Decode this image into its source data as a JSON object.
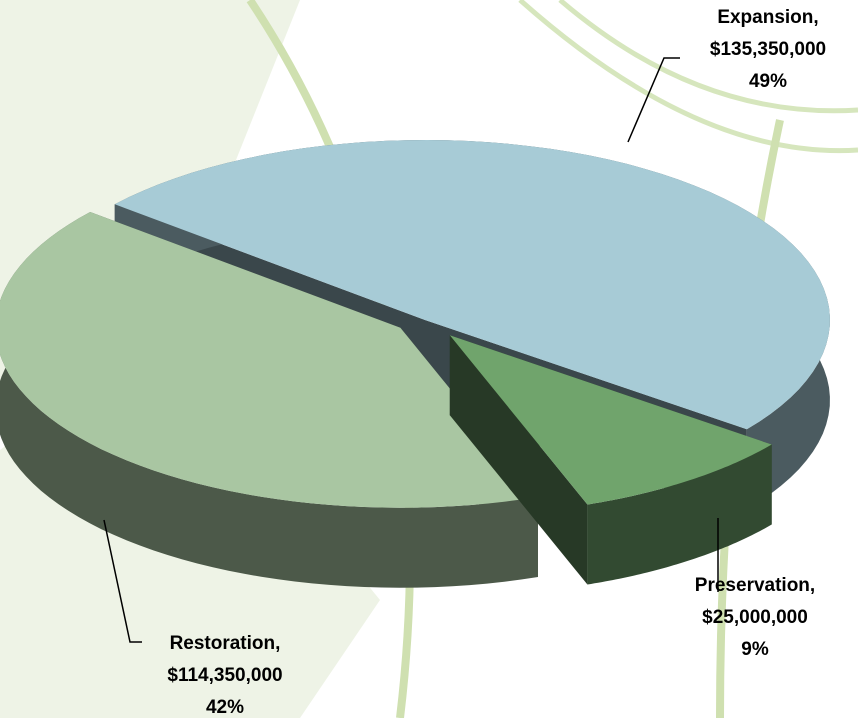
{
  "chart_data": {
    "type": "pie",
    "categories": [
      "Expansion,",
      "Preservation,",
      "Restoration,"
    ],
    "values": [
      135350000,
      25000000,
      114350000
    ],
    "value_labels": [
      "$135,350,000",
      "$25,000,000",
      "$114,350,000"
    ],
    "percents": [
      49,
      9,
      42
    ],
    "percent_labels": [
      "49%",
      "9%",
      "42%"
    ],
    "colors": [
      "#a7cbd6",
      "#70a46c",
      "#a9c6a2"
    ]
  }
}
